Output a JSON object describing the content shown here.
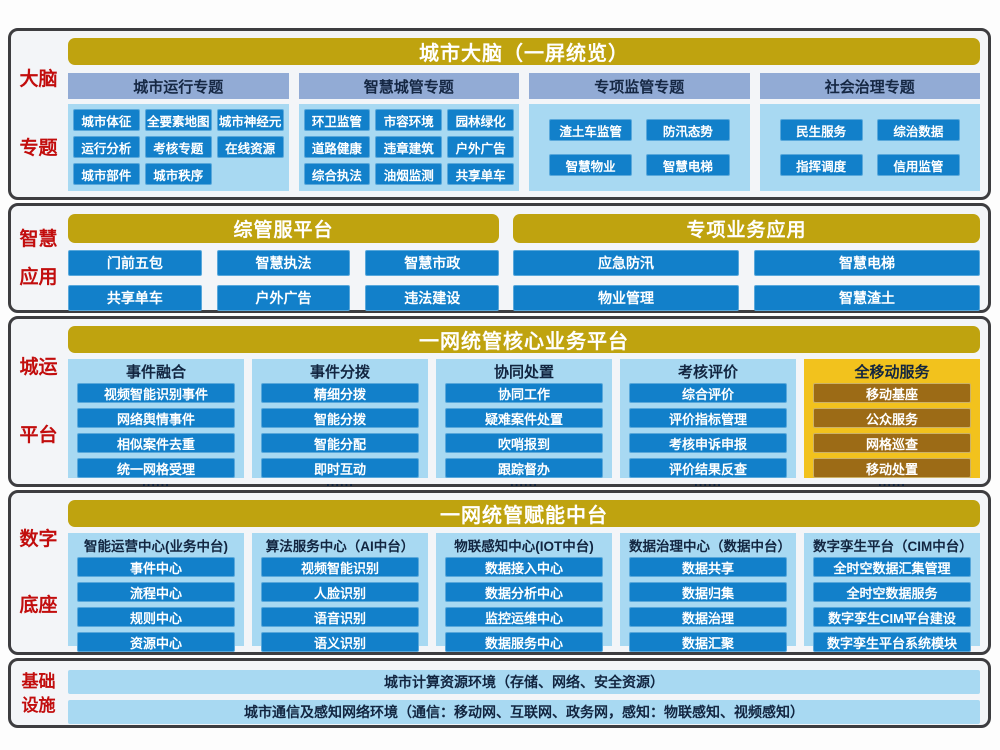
{
  "colors": {
    "gold_bar": "#bfa30f",
    "gold_panel": "#f2c21d",
    "brown_chip": "#9c6b16",
    "blue_chip": "#1280ca",
    "light_blue_panel": "#a8d9f2",
    "periwinkle_header": "#92abd5",
    "red_side_label": "#c20d0d",
    "navy_text": "#122540",
    "section_border": "#3d3d40"
  },
  "layer1": {
    "side": [
      "大脑",
      "专题"
    ],
    "title": "城市大脑（一屏统览）",
    "columns": [
      {
        "header": "城市运行专题",
        "items": [
          "城市体征",
          "全要素地图",
          "城市神经元",
          "运行分析",
          "考核专题",
          "在线资源",
          "城市部件",
          "城市秩序"
        ]
      },
      {
        "header": "智慧城管专题",
        "items": [
          "环卫监管",
          "市容环境",
          "园林绿化",
          "道路健康",
          "违章建筑",
          "户外广告",
          "综合执法",
          "油烟监测",
          "共享单车"
        ]
      },
      {
        "header": "专项监管专题",
        "items": [
          "渣土车监管",
          "防汛态势",
          "智慧物业",
          "智慧电梯"
        ]
      },
      {
        "header": "社会治理专题",
        "items": [
          "民生服务",
          "综治数据",
          "指挥调度",
          "信用监管"
        ]
      }
    ]
  },
  "layer2": {
    "side": [
      "智慧",
      "应用"
    ],
    "groups": [
      {
        "title": "综管服平台",
        "items": [
          "门前五包",
          "智慧执法",
          "智慧市政",
          "共享单车",
          "户外广告",
          "违法建设"
        ]
      },
      {
        "title": "专项业务应用",
        "items": [
          "应急防汛",
          "智慧电梯",
          "物业管理",
          "智慧渣土"
        ]
      }
    ]
  },
  "layer3": {
    "side": [
      "城运",
      "平台"
    ],
    "title": "一网统管核心业务平台",
    "dots": "......",
    "columns": [
      {
        "header": "事件融合",
        "items": [
          "视频智能识别事件",
          "网络舆情事件",
          "相似案件去重",
          "统一网格受理"
        ]
      },
      {
        "header": "事件分拨",
        "items": [
          "精细分拨",
          "智能分拨",
          "智能分配",
          "即时互动"
        ]
      },
      {
        "header": "协同处置",
        "items": [
          "协同工作",
          "疑难案件处置",
          "吹哨报到",
          "跟踪督办"
        ]
      },
      {
        "header": "考核评价",
        "items": [
          "综合评价",
          "评价指标管理",
          "考核申诉申报",
          "评价结果反查"
        ]
      },
      {
        "header": "全移动服务",
        "items": [
          "移动基座",
          "公众服务",
          "网格巡查",
          "移动处置"
        ]
      }
    ]
  },
  "layer4": {
    "side": [
      "数字",
      "底座"
    ],
    "title": "一网统管赋能中台",
    "columns": [
      {
        "header": "智能运营中心(业务中台)",
        "items": [
          "事件中心",
          "流程中心",
          "规则中心",
          "资源中心"
        ]
      },
      {
        "header": "算法服务中心（AI中台）",
        "items": [
          "视频智能识别",
          "人脸识别",
          "语音识别",
          "语义识别"
        ]
      },
      {
        "header": "物联感知中心(IOT中台)",
        "items": [
          "数据接入中心",
          "数据分析中心",
          "监控运维中心",
          "数据服务中心"
        ]
      },
      {
        "header": "数据治理中心（数据中台）",
        "items": [
          "数据共享",
          "数据归集",
          "数据治理",
          "数据汇聚"
        ]
      },
      {
        "header": "数字孪生平台（CIM中台）",
        "items": [
          "全时空数据汇集管理",
          "全时空数据服务",
          "数字孪生CIM平台建设",
          "数字孪生平台系统模块"
        ]
      }
    ]
  },
  "layer5": {
    "side": [
      "基础",
      "设施"
    ],
    "bars": [
      "城市计算资源环境（存储、网络、安全资源）",
      "城市通信及感知网络环境（通信：移动网、互联网、政务网，感知：物联感知、视频感知）"
    ]
  }
}
